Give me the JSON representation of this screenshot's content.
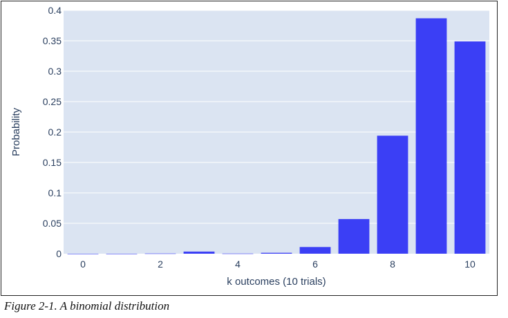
{
  "chart_data": {
    "type": "bar",
    "categories": [
      "0",
      "1",
      "2",
      "3",
      "4",
      "5",
      "6",
      "7",
      "8",
      "9",
      "10"
    ],
    "values": [
      1e-07,
      8.7e-06,
      0.000355,
      0.0035,
      0.00028,
      0.0015,
      0.011,
      0.057,
      0.194,
      0.387,
      0.349
    ],
    "x_ticks": [
      "0",
      "2",
      "4",
      "6",
      "8",
      "10"
    ],
    "y_ticks": [
      "0",
      "0.05",
      "0.1",
      "0.15",
      "0.2",
      "0.25",
      "0.3",
      "0.35",
      "0.4"
    ],
    "xlabel": "k outcomes (10 trials)",
    "ylabel": "Probability",
    "ylim": [
      0,
      0.4
    ],
    "grid": true,
    "bar_color": "#3b3ff5",
    "plot_background": "#dbe4f2"
  },
  "caption": "Figure 2-1. A binomial distribution"
}
